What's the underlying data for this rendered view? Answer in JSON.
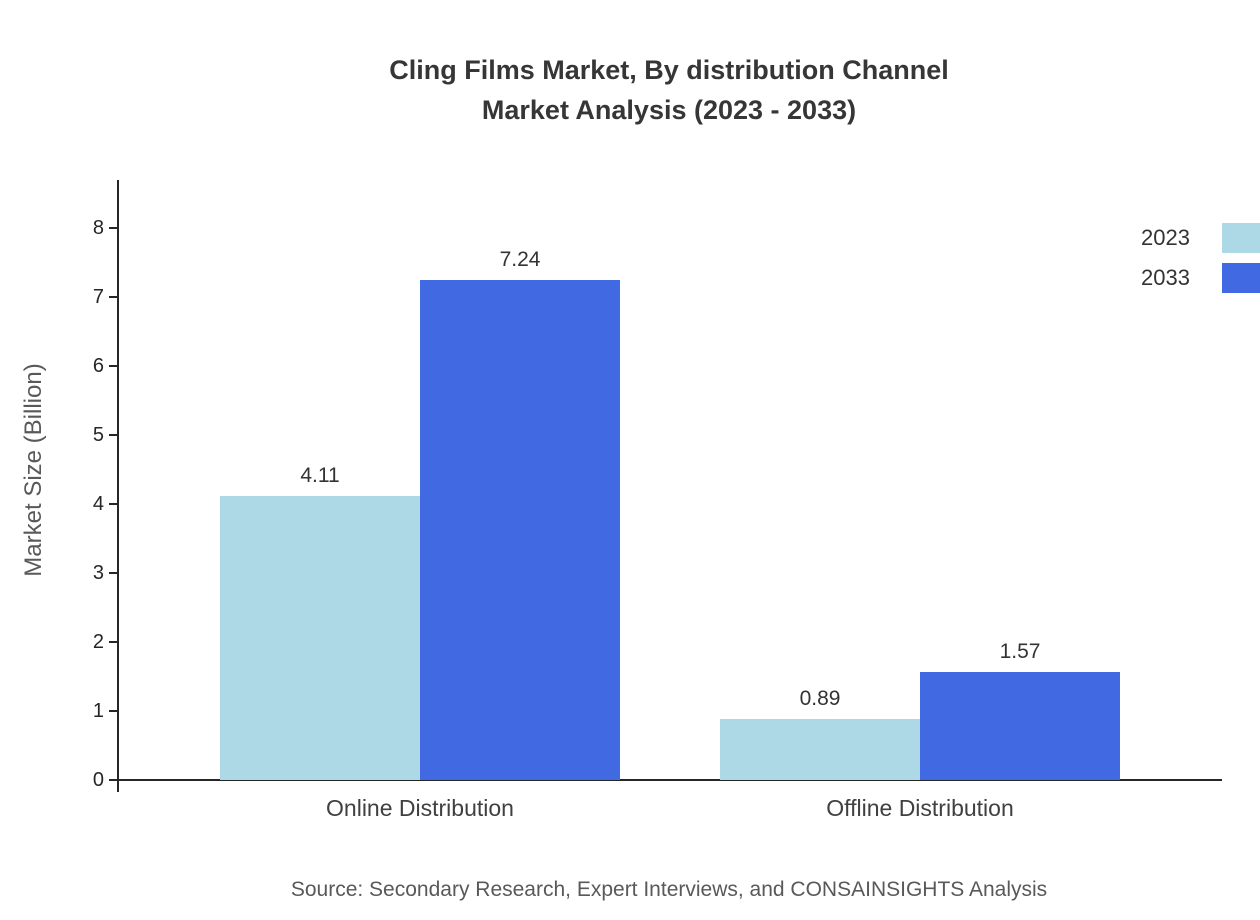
{
  "title": {
    "line1": "Cling Films Market, By distribution Channel",
    "line2": "Market Analysis (2023 - 2033)"
  },
  "source": "Source: Secondary Research, Expert Interviews, and CONSAINSIGHTS Analysis",
  "chart_data": {
    "type": "bar",
    "title": "Cling Films Market, By distribution Channel Market Analysis (2023 - 2033)",
    "categories": [
      "Online Distribution",
      "Offline Distribution"
    ],
    "series": [
      {
        "name": "2023",
        "color": "#ADD8E6",
        "values": [
          4.11,
          0.89
        ]
      },
      {
        "name": "2033",
        "color": "#4169E1",
        "values": [
          7.24,
          1.57
        ]
      }
    ],
    "xlabel": "",
    "ylabel": "Market Size (Billion)",
    "ylim": [
      0,
      8
    ],
    "yticks": [
      0,
      1,
      2,
      3,
      4,
      5,
      6,
      7,
      8
    ],
    "grid": false,
    "legend_position": "top-right",
    "value_labels": [
      "4.11",
      "7.24",
      "0.89",
      "1.57"
    ]
  }
}
